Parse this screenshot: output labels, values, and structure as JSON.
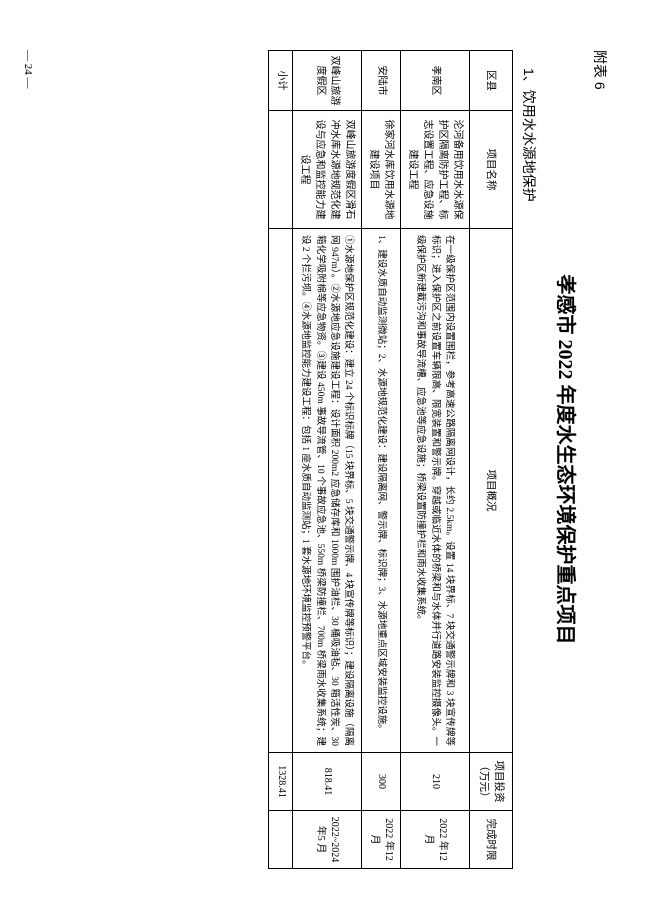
{
  "appendix_label": "附表 6",
  "title": "孝感市 2022 年度水生态环境保护重点项目",
  "section_heading": "1、饮用水水源地保护",
  "columns": {
    "district": "区县",
    "project_name": "项目名称",
    "overview": "项目概况",
    "investment": "项目投资（万元）",
    "deadline": "完成时限"
  },
  "rows": [
    {
      "district": "孝南区",
      "project_name": "沦河备用饮用水水源保护区隔离防护工程、标志设置工程、应急设施建设工程",
      "overview": "在一级保护区范围内设置围栏，参考高速公路隔离网设计，长约 2.5km。设置 14 块界标、7 块交通警示牌和 3 块宣传牌等标识；进入保护区之前设置车辆限高、限宽装置和警示牌。穿越或临近水体的桥梁和与水体并行道路安装监控摄像头。一级保护区新建截污沟和事故导流槽、应急池等应急设施；桥梁设置防撞护栏和雨水收集系统。",
      "investment": "210",
      "deadline": "2022 年12 月"
    },
    {
      "district": "安陆市",
      "project_name": "徐家河水库饮用水源地建设项目",
      "overview": "1、建设水质自动监测微站；2、水源地规范化建设：建设隔离网、警示牌、标识牌；3、水源地重点区域安装监控设施。",
      "investment": "300",
      "deadline": "2022 年12 月"
    },
    {
      "district": "双峰山旅游度假区",
      "project_name": "双峰山旅游度假区滑石冲水库水源地规范化建设与应急和监控能力建设工程",
      "overview": "①水源地保护区规范化建设：建立 24 个标识标牌（15 块界标、5 块交通警示牌、4 块宣传牌等标识）；建设隔离设施（隔离网 947m）。②水源地应急设施建设工程：设计面积 200m2 应急储存库和 1000m 围护油栏、30 桶吸油毡、30 箱活性炭、30 箱化学吸附棉等应急物资。③建设 450m 事故导流管、10 个事故应急池、550m 桥梁防撞栏、700m 桥梁雨水收集系统；建设 2 个拦污坝。④水源地监控能力建设工程：包括 1 座水质自动监测站；1 套水源地环境监控预警平台。",
      "investment": "818.41",
      "deadline": "2022~2024 年5 月"
    }
  ],
  "subtotal": {
    "label": "小计",
    "investment": "1328.41"
  },
  "page_number": "— 24 —"
}
